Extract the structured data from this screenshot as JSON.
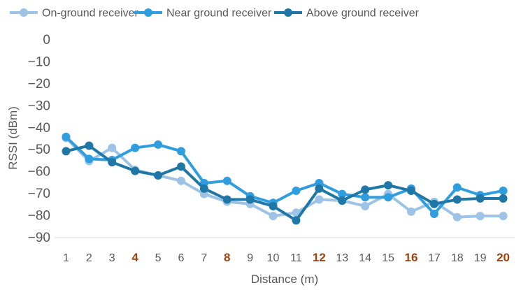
{
  "chart_data": {
    "type": "line",
    "title": "",
    "xlabel": "Distance (m)",
    "ylabel": "RSSI (dBm)",
    "ylim": [
      -90,
      0
    ],
    "yticks": [
      "0",
      "−10",
      "−20",
      "−30",
      "−40",
      "−50",
      "−60",
      "−70",
      "−80",
      "−90"
    ],
    "ytick_values": [
      0,
      -10,
      -20,
      -30,
      -40,
      -50,
      -60,
      -70,
      -80,
      -90
    ],
    "categories": [
      "1",
      "2",
      "3",
      "4",
      "5",
      "6",
      "7",
      "8",
      "9",
      "10",
      "11",
      "12",
      "13",
      "14",
      "15",
      "16",
      "17",
      "18",
      "19",
      "20"
    ],
    "highlighted_categories": [
      "4",
      "8",
      "12",
      "16",
      "20"
    ],
    "highlight_color": "#a0410d",
    "grid": false,
    "legend_position": "top",
    "series": [
      {
        "name": "On-ground receiver",
        "color": "#9dc3e6",
        "values": [
          -45,
          -55.5,
          -49.5,
          -59.5,
          -62,
          -64.5,
          -70.5,
          -74,
          -75,
          -80.5,
          -79,
          -73,
          -73.5,
          -76,
          -70.5,
          -78.5,
          -74,
          -81,
          -80.5,
          -80.5
        ]
      },
      {
        "name": "Near ground receiver",
        "color": "#2e9ee0",
        "values": [
          -44.5,
          -54.5,
          -55,
          -49.5,
          -48,
          -51,
          -65.5,
          -64.5,
          -71.5,
          -74.5,
          -69,
          -65.5,
          -70.5,
          -72,
          -72,
          -68,
          -79.5,
          -67.5,
          -71,
          -69
        ]
      },
      {
        "name": "Above ground receiver",
        "color": "#1f77a8",
        "values": [
          -51,
          -48.5,
          -56,
          -60,
          -62,
          -58,
          -68,
          -73,
          -73,
          -76,
          -82.5,
          -68,
          -73.5,
          -68.5,
          -66.5,
          -69,
          -75,
          -73,
          -72.5,
          -72.5
        ]
      }
    ]
  }
}
